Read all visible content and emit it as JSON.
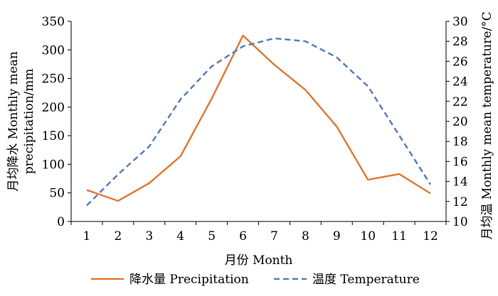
{
  "chart_data": {
    "type": "line",
    "x": [
      1,
      2,
      3,
      4,
      5,
      6,
      7,
      8,
      9,
      10,
      11,
      12
    ],
    "xlabel": "月份  Month",
    "ylabel_left": [
      "月均降水  Monthly mean",
      "precipitation/mm"
    ],
    "ylabel_right": "月均温  Monthly mean temperature/°C",
    "ylim_left": [
      0,
      350
    ],
    "yticks_left": [
      0,
      50,
      100,
      150,
      200,
      250,
      300,
      350
    ],
    "ylim_right": [
      10,
      30
    ],
    "yticks_right": [
      10,
      12,
      14,
      16,
      18,
      20,
      22,
      24,
      26,
      28,
      30
    ],
    "grid": false,
    "legend_position": "bottom",
    "series": [
      {
        "name": "降水量  Precipitation",
        "axis": "left",
        "color": "#E07B39",
        "dash": "solid",
        "values": [
          55,
          36,
          67,
          114,
          215,
          325,
          274,
          230,
          166,
          73,
          83,
          49
        ]
      },
      {
        "name": "温度  Temperature",
        "axis": "right",
        "color": "#5B7DB7",
        "dash": "dashed",
        "values": [
          11.6,
          14.7,
          17.5,
          22.2,
          25.5,
          27.5,
          28.3,
          28.0,
          26.4,
          23.5,
          18.6,
          13.7
        ]
      }
    ]
  }
}
